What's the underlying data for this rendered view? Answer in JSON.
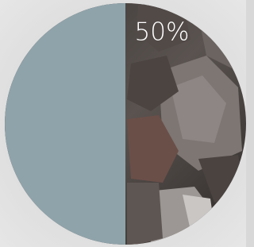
{
  "progress": {
    "label": "50%",
    "value": 50,
    "color": "#8fa3aa"
  }
}
